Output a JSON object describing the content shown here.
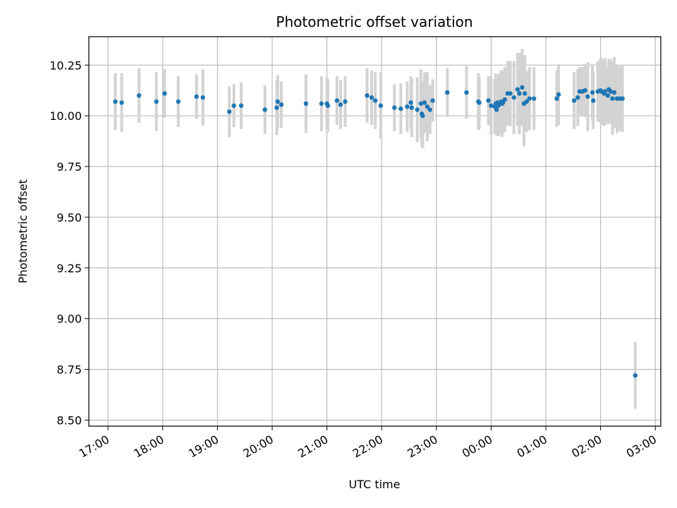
{
  "chart_data": {
    "type": "scatter",
    "title": "Photometric offset variation",
    "xlabel": "UTC time",
    "ylabel": "Photometric offset",
    "grid": true,
    "legend": "none",
    "x_axis_kind": "time",
    "x_date_start": "17:00",
    "x_ticks": [
      "17:00",
      "18:00",
      "19:00",
      "20:00",
      "21:00",
      "22:00",
      "23:00",
      "00:00",
      "01:00",
      "02:00",
      "03:00"
    ],
    "y_ticks": [
      "8.50",
      "8.75",
      "9.00",
      "9.25",
      "9.50",
      "9.75",
      "10.00",
      "10.25"
    ],
    "xlim": [
      "16:39",
      "03:06"
    ],
    "ylim": [
      8.47,
      10.39
    ],
    "colors": {
      "point": "#1f77b4",
      "errorbar": "#d3d3d3",
      "grid": "#b0b0b0"
    },
    "series": [
      {
        "x": [
          "17:08",
          "17:15",
          "17:34",
          "17:53",
          "18:02",
          "18:17",
          "18:37",
          "18:44",
          "19:13",
          "19:18",
          "19:26",
          "19:52",
          "20:05",
          "20:06",
          "20:10",
          "20:37",
          "20:54",
          "21:00",
          "21:01",
          "21:11",
          "21:15",
          "21:20",
          "21:44",
          "21:49",
          "21:53",
          "21:59",
          "22:14",
          "22:21",
          "22:28",
          "22:32",
          "22:33",
          "22:39",
          "22:43",
          "22:44",
          "22:45",
          "22:47",
          "22:50",
          "22:53",
          "22:56",
          "23:12",
          "23:33",
          "23:46",
          "23:47",
          "23:57",
          "24:00",
          "24:04",
          "24:05",
          "24:06",
          "24:07",
          "24:08",
          "24:09",
          "24:11",
          "24:12",
          "24:13",
          "24:15",
          "24:18",
          "24:21",
          "24:25",
          "24:29",
          "24:31",
          "24:34",
          "24:36",
          "24:37",
          "24:39",
          "24:42",
          "24:47",
          "25:12",
          "25:14",
          "25:31",
          "25:35",
          "25:37",
          "25:40",
          "25:43",
          "25:46",
          "25:51",
          "25:52",
          "25:57",
          "26:00",
          "26:01",
          "26:03",
          "26:04",
          "26:05",
          "26:08",
          "26:09",
          "26:11",
          "26:13",
          "26:15",
          "26:18",
          "26:21",
          "26:24",
          "26:38"
        ],
        "y": [
          10.07,
          10.065,
          10.1,
          10.07,
          10.11,
          10.07,
          10.095,
          10.09,
          10.02,
          10.05,
          10.05,
          10.03,
          10.04,
          10.07,
          10.055,
          10.06,
          10.06,
          10.06,
          10.05,
          10.075,
          10.055,
          10.07,
          10.1,
          10.09,
          10.075,
          10.05,
          10.04,
          10.035,
          10.045,
          10.065,
          10.04,
          10.03,
          10.06,
          10.01,
          10.0,
          10.065,
          10.045,
          10.03,
          10.075,
          10.115,
          10.115,
          10.07,
          10.065,
          10.075,
          10.05,
          10.045,
          10.06,
          10.03,
          10.065,
          10.05,
          10.06,
          10.07,
          10.06,
          10.065,
          10.08,
          10.11,
          10.11,
          10.09,
          10.13,
          10.11,
          10.14,
          10.06,
          10.11,
          10.07,
          10.085,
          10.085,
          10.085,
          10.105,
          10.075,
          10.09,
          10.12,
          10.12,
          10.125,
          10.095,
          10.115,
          10.075,
          10.12,
          10.125,
          10.12,
          10.115,
          10.11,
          10.12,
          10.1,
          10.13,
          10.12,
          10.085,
          10.115,
          10.085,
          10.085,
          10.085,
          8.72
        ],
        "err": [
          0.14,
          0.145,
          0.135,
          0.145,
          0.12,
          0.125,
          0.11,
          0.14,
          0.125,
          0.105,
          0.115,
          0.12,
          0.135,
          0.13,
          0.115,
          0.145,
          0.135,
          0.13,
          0.13,
          0.12,
          0.12,
          0.125,
          0.135,
          0.135,
          0.14,
          0.165,
          0.115,
          0.125,
          0.125,
          0.13,
          0.145,
          0.16,
          0.17,
          0.16,
          0.16,
          0.15,
          0.17,
          0.12,
          0.105,
          0.12,
          0.13,
          0.14,
          0.13,
          0.12,
          0.145,
          0.135,
          0.15,
          0.13,
          0.13,
          0.15,
          0.15,
          0.155,
          0.165,
          0.155,
          0.16,
          0.16,
          0.16,
          0.18,
          0.18,
          0.2,
          0.19,
          0.21,
          0.19,
          0.15,
          0.155,
          0.155,
          0.14,
          0.15,
          0.14,
          0.14,
          0.12,
          0.12,
          0.13,
          0.17,
          0.14,
          0.14,
          0.15,
          0.16,
          0.165,
          0.16,
          0.16,
          0.165,
          0.14,
          0.15,
          0.16,
          0.18,
          0.175,
          0.17,
          0.16,
          0.165,
          0.165
        ]
      }
    ]
  }
}
